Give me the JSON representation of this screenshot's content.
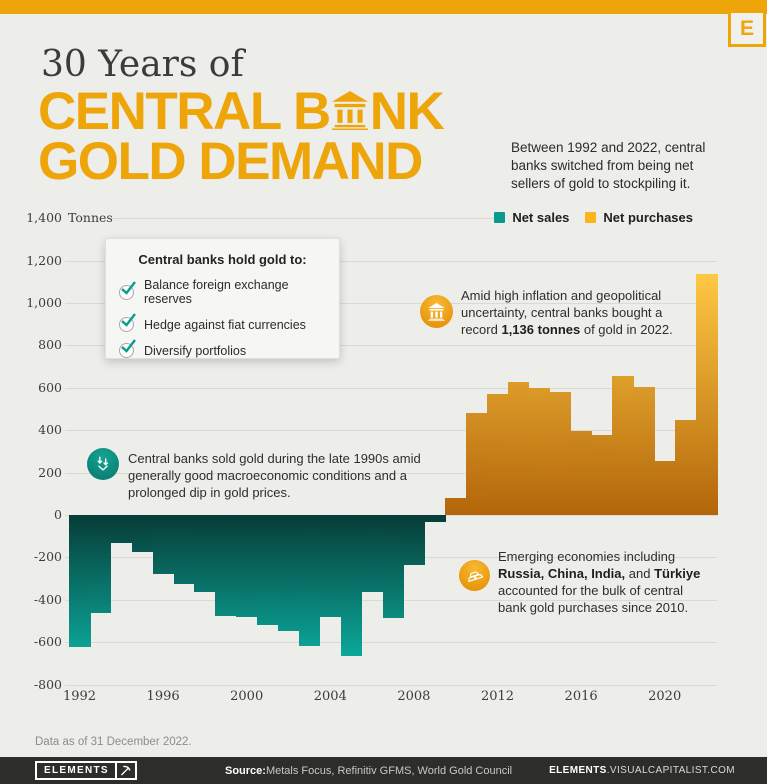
{
  "colors": {
    "accent": "#EEA50A",
    "page_bg": "#EDEDEA",
    "legend_teal": "#0A9A8D",
    "legend_gold": "#FBB41C",
    "footer_bg": "#2D2D2B"
  },
  "header": {
    "badge_letter": "E",
    "eyebrow": "30 Years of",
    "title_line1_pre": "CENTRAL B",
    "title_line1_post": "NK",
    "title_line2": "GOLD DEMAND",
    "intro": "Between 1992 and 2022, central banks switched from being net sellers of gold to stockpiling it."
  },
  "legend": {
    "net_sales": "Net sales",
    "net_purchases": "Net purchases"
  },
  "card": {
    "title": "Central banks hold gold to:",
    "items": [
      "Balance foreign exchange reserves",
      "Hedge against fiat currencies",
      "Diversify portfolios"
    ]
  },
  "annotations": {
    "record": {
      "pre": "Amid high inflation and geopolitical uncertainty, central banks bought a record ",
      "bold": "1,136 tonnes",
      "post": " of gold in 2022."
    },
    "nineties": {
      "text": "Central banks sold gold during the late 1990s amid generally good macroeconomic conditions and a prolonged dip in gold prices."
    },
    "emerging": {
      "pre": "Emerging economies including ",
      "bold1": "Russia, China, India,",
      "mid": " and ",
      "bold2": "Türkiye",
      "post": " accounted for the bulk of central bank gold purchases since 2010."
    }
  },
  "chart_data": {
    "type": "bar",
    "unit": "Tonnes",
    "x": [
      1992,
      1993,
      1994,
      1995,
      1996,
      1997,
      1998,
      1999,
      2000,
      2001,
      2002,
      2003,
      2004,
      2005,
      2006,
      2007,
      2008,
      2009,
      2010,
      2011,
      2012,
      2013,
      2014,
      2015,
      2016,
      2017,
      2018,
      2019,
      2020,
      2021,
      2022
    ],
    "values": [
      -622,
      -464,
      -130,
      -173,
      -279,
      -326,
      -363,
      -477,
      -479,
      -520,
      -547,
      -620,
      -479,
      -663,
      -365,
      -484,
      -235,
      -34,
      79,
      481,
      569,
      629,
      601,
      580,
      395,
      379,
      656,
      605,
      255,
      450,
      1136
    ],
    "series": [
      {
        "name": "Net sales",
        "sign": "negative",
        "color_dark": "#073C37",
        "color_bright": "#0BA89A"
      },
      {
        "name": "Net purchases",
        "sign": "positive",
        "color_dark": "#B3660A",
        "color_bright": "#FFC844"
      }
    ],
    "ylim": [
      -800,
      1400
    ],
    "ytick_step": 200,
    "xticks": [
      1992,
      1996,
      2000,
      2004,
      2008,
      2012,
      2016,
      2020
    ],
    "grid": true,
    "legend_position": "top-right"
  },
  "footnote": "Data as of 31 December 2022.",
  "footer": {
    "logo_text": "ELEMENTS",
    "source_label": "Source:",
    "source_text": " Metals Focus, Refinitiv GFMS, World Gold Council",
    "site_bold": "ELEMENTS",
    "site_rest": ".VISUALCAPITALIST.COM"
  }
}
